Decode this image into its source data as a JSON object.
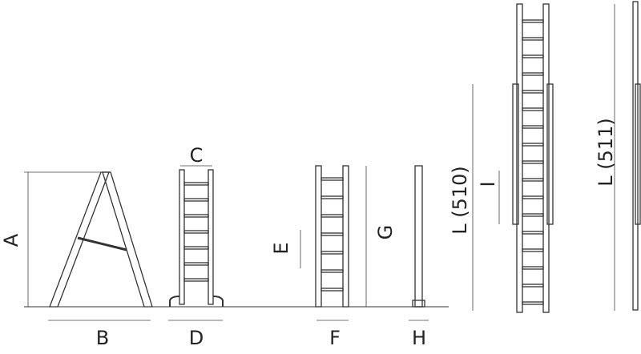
{
  "labels": {
    "a": "A",
    "b": "B",
    "c": "C",
    "d": "D",
    "e": "E",
    "f": "F",
    "g": "G",
    "h": "H",
    "i": "I",
    "l510": "L (510)",
    "l511": "L (511)"
  }
}
